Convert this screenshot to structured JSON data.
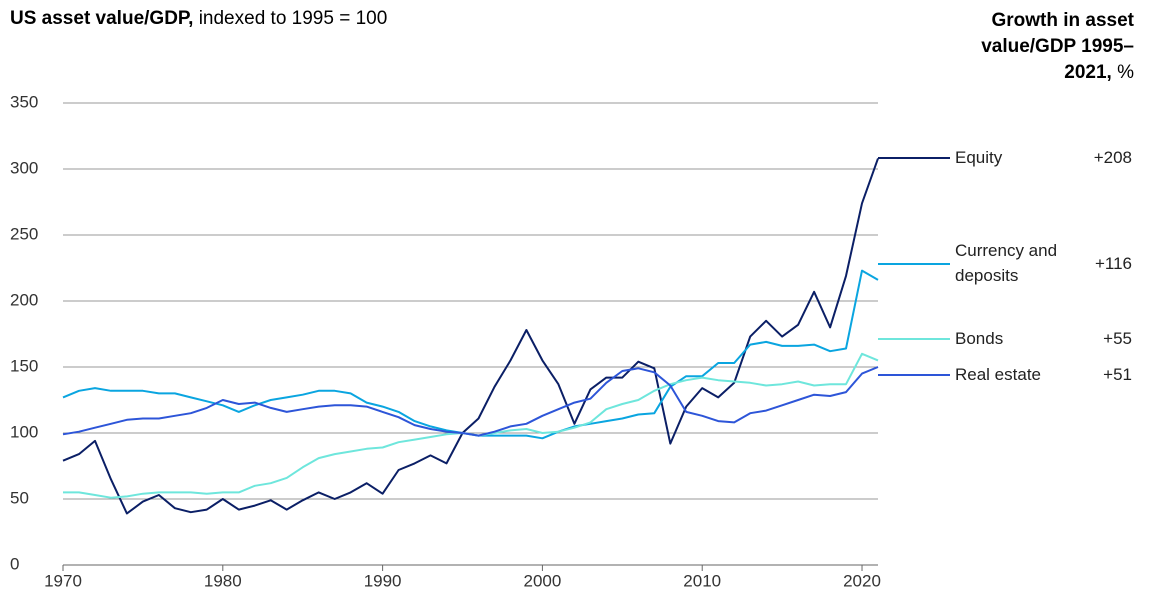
{
  "chart_data": {
    "type": "line",
    "title_bold": "US asset value/GDP,",
    "title_rest": "indexed to 1995 = 100",
    "legend_title": "Growth in asset value/GDP 1995–2021,",
    "legend_title_unit": "%",
    "x": [
      1970,
      1971,
      1972,
      1973,
      1974,
      1975,
      1976,
      1977,
      1978,
      1979,
      1980,
      1981,
      1982,
      1983,
      1984,
      1985,
      1986,
      1987,
      1988,
      1989,
      1990,
      1991,
      1992,
      1993,
      1994,
      1995,
      1996,
      1997,
      1998,
      1999,
      2000,
      2001,
      2002,
      2003,
      2004,
      2005,
      2006,
      2007,
      2008,
      2009,
      2010,
      2011,
      2012,
      2013,
      2014,
      2015,
      2016,
      2017,
      2018,
      2019,
      2020,
      2021
    ],
    "xlim": [
      1970,
      2021
    ],
    "xticks": [
      1970,
      1980,
      1990,
      2000,
      2010,
      2020
    ],
    "ylim": [
      0,
      350
    ],
    "yticks": [
      0,
      50,
      100,
      150,
      200,
      250,
      300,
      350
    ],
    "grid": true,
    "series": [
      {
        "name": "Equity",
        "color": "#0b1f66",
        "growth": "+208",
        "values": [
          79,
          84,
          94,
          65,
          39,
          48,
          53,
          43,
          40,
          42,
          50,
          42,
          45,
          49,
          42,
          49,
          55,
          50,
          55,
          62,
          54,
          72,
          77,
          83,
          77,
          100,
          111,
          135,
          155,
          178,
          155,
          137,
          107,
          133,
          142,
          142,
          154,
          149,
          92,
          120,
          134,
          127,
          138,
          173,
          185,
          173,
          182,
          207,
          180,
          219,
          274,
          308
        ]
      },
      {
        "name": "Currency and deposits",
        "color": "#0aa5e0",
        "growth": "+116",
        "values": [
          127,
          132,
          134,
          132,
          132,
          132,
          130,
          130,
          127,
          124,
          121,
          116,
          121,
          125,
          127,
          129,
          132,
          132,
          130,
          123,
          120,
          116,
          109,
          105,
          102,
          100,
          98,
          98,
          98,
          98,
          96,
          101,
          105,
          107,
          109,
          111,
          114,
          115,
          135,
          143,
          143,
          153,
          153,
          167,
          169,
          166,
          166,
          167,
          162,
          164,
          223,
          216
        ]
      },
      {
        "name": "Bonds",
        "color": "#6ee6dc",
        "growth": "+55",
        "values": [
          55,
          55,
          53,
          51,
          52,
          54,
          55,
          55,
          55,
          54,
          55,
          55,
          60,
          62,
          66,
          74,
          81,
          84,
          86,
          88,
          89,
          93,
          95,
          97,
          99,
          100,
          98,
          100,
          102,
          103,
          100,
          101,
          104,
          108,
          118,
          122,
          125,
          132,
          137,
          140,
          142,
          140,
          139,
          138,
          136,
          137,
          139,
          136,
          137,
          137,
          160,
          155
        ]
      },
      {
        "name": "Real estate",
        "color": "#2d55d8",
        "growth": "+51",
        "values": [
          99,
          101,
          104,
          107,
          110,
          111,
          111,
          113,
          115,
          119,
          125,
          122,
          123,
          119,
          116,
          118,
          120,
          121,
          121,
          120,
          116,
          112,
          106,
          103,
          101,
          100,
          98,
          101,
          105,
          107,
          113,
          118,
          123,
          126,
          138,
          147,
          149,
          146,
          136,
          116,
          113,
          109,
          108,
          115,
          117,
          121,
          125,
          129,
          128,
          131,
          145,
          150
        ]
      }
    ]
  }
}
